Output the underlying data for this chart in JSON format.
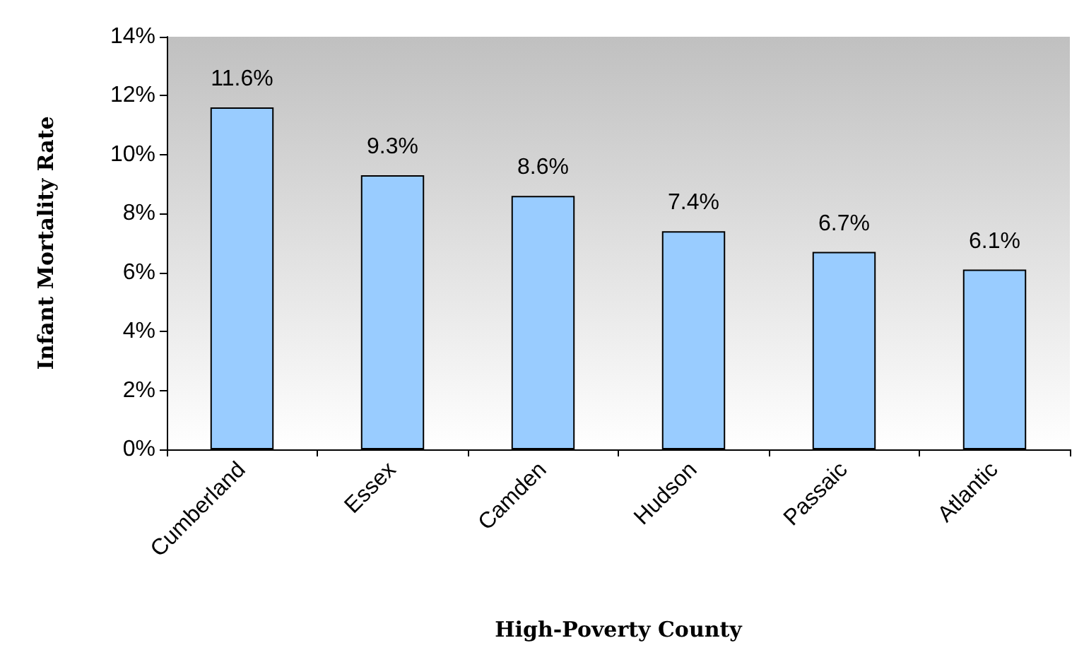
{
  "chart_data": {
    "type": "bar",
    "xlabel": "High-Poverty County",
    "ylabel": "Infant Mortality Rate",
    "categories": [
      "Cumberland",
      "Essex",
      "Camden",
      "Hudson",
      "Passaic",
      "Atlantic"
    ],
    "values": [
      11.6,
      9.3,
      8.6,
      7.4,
      6.7,
      6.1
    ],
    "color": "#99ccff",
    "value_labels": [
      "11.6%",
      "9.3%",
      "8.6%",
      "7.4%",
      "6.7%",
      "6.1%"
    ],
    "ylim": [
      0,
      14
    ],
    "yticks": [
      {
        "value": 0,
        "label": "0%"
      },
      {
        "value": 2,
        "label": "2%"
      },
      {
        "value": 4,
        "label": "4%"
      },
      {
        "value": 6,
        "label": "6%"
      },
      {
        "value": 8,
        "label": "8%"
      },
      {
        "value": 10,
        "label": "10%"
      },
      {
        "value": 12,
        "label": "12%"
      },
      {
        "value": 14,
        "label": "14%"
      }
    ],
    "grid": false
  }
}
